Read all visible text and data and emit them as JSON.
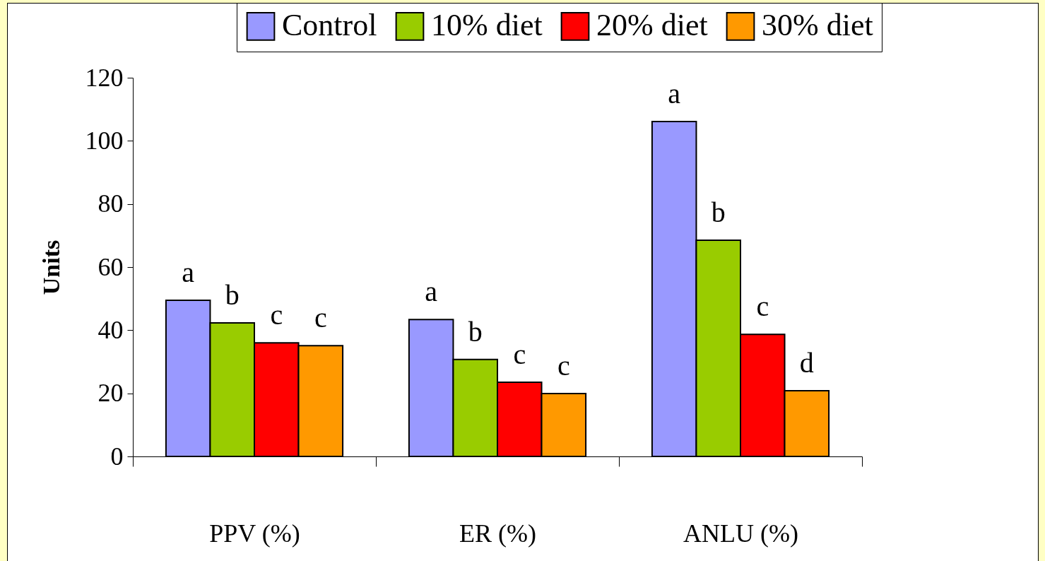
{
  "chart_data": {
    "type": "bar",
    "ylabel": "Units",
    "categories": [
      "PPV (%)",
      "ER (%)",
      "ANLU (%)"
    ],
    "ylim": [
      0,
      120
    ],
    "yticks": [
      0,
      20,
      40,
      60,
      80,
      100,
      120
    ],
    "grid": false,
    "legend": "top right",
    "series": [
      {
        "name": "Control",
        "color": "#9999ff",
        "values": [
          49.5,
          43.4,
          106.1
        ],
        "value_labels": [
          "a",
          "a",
          "a"
        ]
      },
      {
        "name": "10% diet",
        "color": "#99cc00",
        "values": [
          42.3,
          30.7,
          68.5
        ],
        "value_labels": [
          "b",
          "b",
          "b"
        ]
      },
      {
        "name": "20% diet",
        "color": "#ff0000",
        "values": [
          36.0,
          23.5,
          38.7
        ],
        "value_labels": [
          "c",
          "c",
          "c"
        ]
      },
      {
        "name": "30% diet",
        "color": "#ff9900",
        "values": [
          35.1,
          19.9,
          20.8
        ],
        "value_labels": [
          "c",
          "c",
          "d"
        ]
      }
    ]
  }
}
